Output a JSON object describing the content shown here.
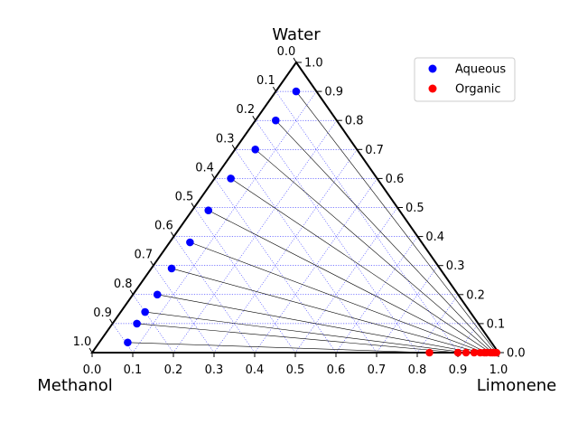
{
  "chart_data": {
    "type": "scatter",
    "subtype": "ternary",
    "corners": {
      "top": "Water",
      "left": "Methanol",
      "right": "Limonene"
    },
    "grid": true,
    "legend_position": "top-right",
    "ticks": [
      "0.0",
      "0.1",
      "0.2",
      "0.3",
      "0.4",
      "0.5",
      "0.6",
      "0.7",
      "0.8",
      "0.9",
      "1.0"
    ],
    "colors": {
      "aqueous": "#0000ff",
      "organic": "#ff0000",
      "grid": "#0000ff",
      "tieline": "#000000"
    },
    "series": [
      {
        "name": "Aqueous",
        "color": "#0000ff",
        "points": [
          {
            "water": 0.9,
            "methanol": 0.05
          },
          {
            "water": 0.8,
            "methanol": 0.15
          },
          {
            "water": 0.7,
            "methanol": 0.25
          },
          {
            "water": 0.6,
            "methanol": 0.36
          },
          {
            "water": 0.49,
            "methanol": 0.47
          },
          {
            "water": 0.38,
            "methanol": 0.57
          },
          {
            "water": 0.29,
            "methanol": 0.66
          },
          {
            "water": 0.2,
            "methanol": 0.74
          },
          {
            "water": 0.14,
            "methanol": 0.8
          },
          {
            "water": 0.1,
            "methanol": 0.84
          },
          {
            "water": 0.035,
            "methanol": 0.895
          }
        ]
      },
      {
        "name": "Organic",
        "color": "#ff0000",
        "points": [
          {
            "water": 0.0,
            "methanol": 0.005
          },
          {
            "water": 0.0,
            "methanol": 0.01
          },
          {
            "water": 0.0,
            "methanol": 0.015
          },
          {
            "water": 0.0,
            "methanol": 0.02
          },
          {
            "water": 0.0,
            "methanol": 0.03
          },
          {
            "water": 0.0,
            "methanol": 0.035
          },
          {
            "water": 0.0,
            "methanol": 0.045
          },
          {
            "water": 0.0,
            "methanol": 0.06
          },
          {
            "water": 0.0,
            "methanol": 0.08
          },
          {
            "water": 0.0,
            "methanol": 0.1
          },
          {
            "water": 0.0,
            "methanol": 0.17
          }
        ]
      }
    ],
    "tie_lines": [
      [
        0,
        0
      ],
      [
        1,
        1
      ],
      [
        2,
        2
      ],
      [
        3,
        3
      ],
      [
        4,
        4
      ],
      [
        5,
        5
      ],
      [
        6,
        6
      ],
      [
        7,
        7
      ],
      [
        8,
        8
      ],
      [
        9,
        9
      ],
      [
        10,
        10
      ]
    ]
  }
}
